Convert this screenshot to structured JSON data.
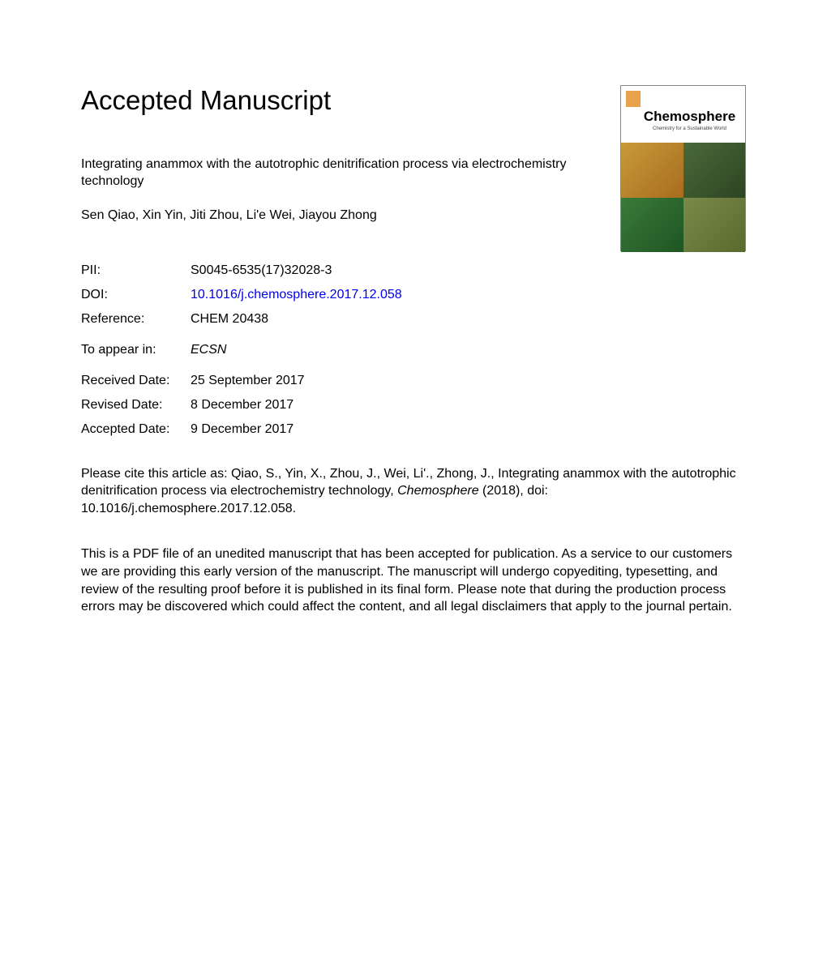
{
  "header": {
    "heading": "Accepted Manuscript",
    "title": "Integrating anammox with the autotrophic denitrification process via electrochemistry technology",
    "authors": "Sen Qiao, Xin Yin, Jiti Zhou, Li'e Wei, Jiayou Zhong"
  },
  "cover": {
    "journal_name": "Chemosphere",
    "subtitle": "Chemistry for a Sustainable World",
    "leaf_colors": {
      "tl": "#c89a3a",
      "tr": "#4a6a3a",
      "bl": "#3a7a3a",
      "br": "#7a8a4a"
    }
  },
  "meta": {
    "pii_label": "PII:",
    "pii_value": "S0045-6535(17)32028-3",
    "doi_label": "DOI:",
    "doi_value": "10.1016/j.chemosphere.2017.12.058",
    "doi_color": "#0000ee",
    "reference_label": "Reference:",
    "reference_value": "CHEM 20438",
    "appear_label": "To appear in:",
    "appear_value": "ECSN",
    "received_label": "Received Date:",
    "received_value": "25 September 2017",
    "revised_label": "Revised Date:",
    "revised_value": "8 December 2017",
    "accepted_label": "Accepted Date:",
    "accepted_value": "9 December 2017"
  },
  "citation": {
    "prefix": "Please cite this article as: Qiao, S., Yin, X., Zhou, J., Wei, Li'., Zhong, J., Integrating anammox with the autotrophic denitrification process via electrochemistry technology, ",
    "journal": "Chemosphere",
    "suffix": " (2018), doi: 10.1016/j.chemosphere.2017.12.058."
  },
  "disclaimer": "This is a PDF file of an unedited manuscript that has been accepted for publication. As a service to our customers we are providing this early version of the manuscript. The manuscript will undergo copyediting, typesetting, and review of the resulting proof before it is published in its final form. Please note that during the production process errors may be discovered which could affect the content, and all legal disclaimers that apply to the journal pertain.",
  "colors": {
    "text": "#000000",
    "background": "#ffffff",
    "link": "#0000ee"
  },
  "typography": {
    "heading_fontsize": 33,
    "body_fontsize": 16,
    "cover_title_fontsize": 17
  }
}
